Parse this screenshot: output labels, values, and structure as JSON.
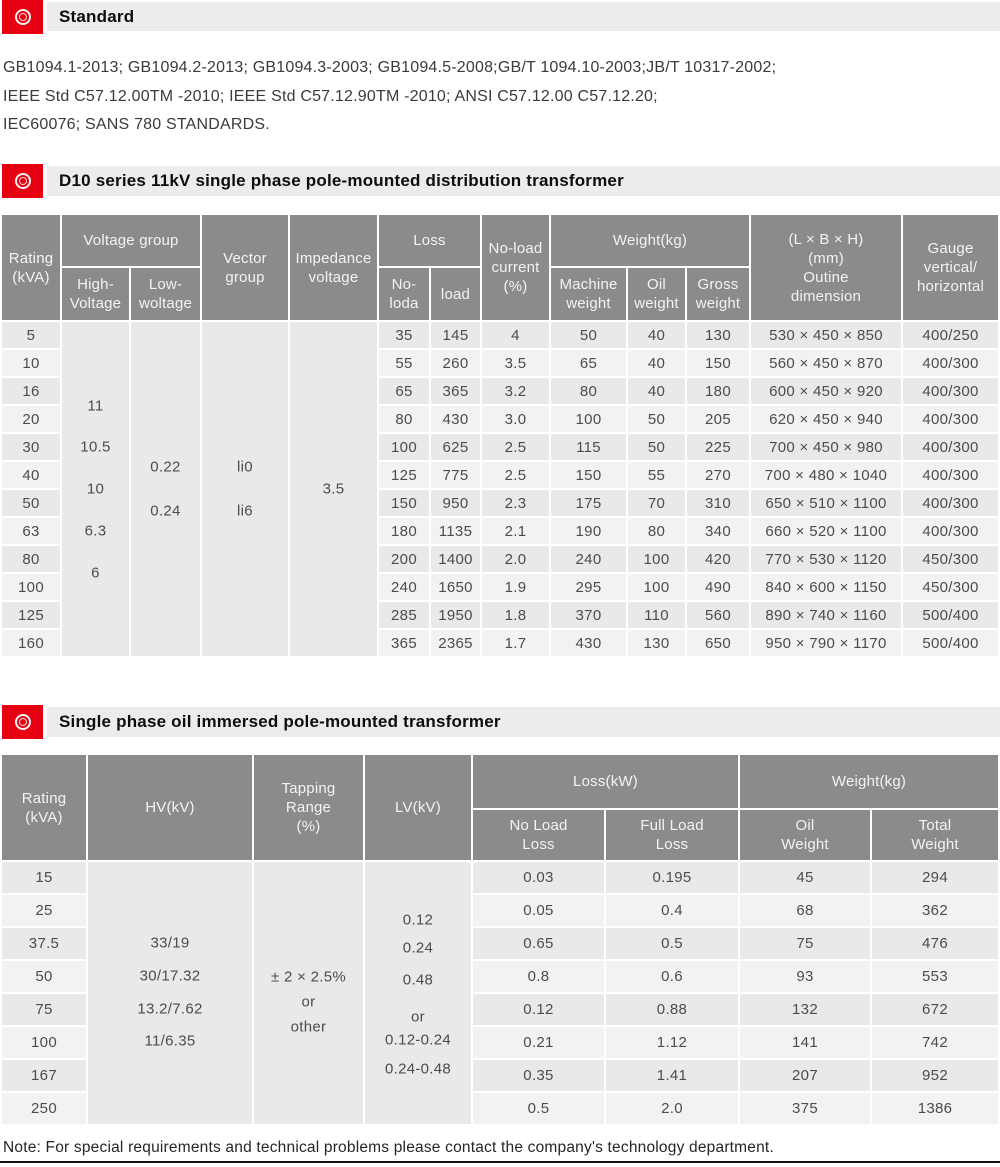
{
  "colors": {
    "accent_red": "#e60012",
    "header_gray": "#8b8b8b",
    "section_bar_gray": "#ececec",
    "row_odd": "#e9e9e9",
    "row_even": "#f2f2f2"
  },
  "sections": {
    "standard": {
      "title": "Standard"
    },
    "d10": {
      "title": "D10 series 11kV single phase pole-mounted distribution transformer"
    },
    "single_phase": {
      "title": "Single phase oil immersed pole-mounted  transformer"
    }
  },
  "standards_text": {
    "line1": "GB1094.1-2013; GB1094.2-2013; GB1094.3-2003; GB1094.5-2008;GB/T 1094.10-2003;JB/T 10317-2002;",
    "line2": "IEEE Std C57.12.00TM -2010; IEEE Std C57.12.90TM -2010; ANSI C57.12.00 C57.12.20;",
    "line3": "IEC60076; SANS 780 STANDARDS."
  },
  "table1": {
    "headers": {
      "rating": "Rating\n(kVA)",
      "voltage_group": "Voltage group",
      "high_voltage": "High-\nVoltage",
      "low_voltage": "Low-\nwoltage",
      "vector_group": "Vector\ngroup",
      "impedance_voltage": "Impedance\nvoltage",
      "loss": "Loss",
      "no_load_loss": "No-\nloda",
      "load_loss": "load",
      "no_load_current": "No-load\ncurrent\n(%)",
      "weight": "Weight(kg)",
      "machine_weight": "Machine\nweight",
      "oil_weight": "Oil\nweight",
      "gross_weight": "Gross\nweight",
      "outline_dimension": "(L × B × H)\n(mm)\nOutine\ndimension",
      "gauge": "Gauge\nvertical/\nhorizontal"
    },
    "merged": {
      "high_voltage": [
        "11",
        "10.5",
        "10",
        "6.3",
        "6"
      ],
      "low_voltage": [
        "0.22",
        "0.24"
      ],
      "vector_group": [
        "li0",
        "li6"
      ],
      "impedance_voltage": [
        "3.5"
      ]
    },
    "rows": [
      [
        "5",
        "35",
        "145",
        "4",
        "50",
        "40",
        "130",
        "530 × 450 × 850",
        "400/250"
      ],
      [
        "10",
        "55",
        "260",
        "3.5",
        "65",
        "40",
        "150",
        "560 × 450 × 870",
        "400/300"
      ],
      [
        "16",
        "65",
        "365",
        "3.2",
        "80",
        "40",
        "180",
        "600 × 450 × 920",
        "400/300"
      ],
      [
        "20",
        "80",
        "430",
        "3.0",
        "100",
        "50",
        "205",
        "620 × 450 × 940",
        "400/300"
      ],
      [
        "30",
        "100",
        "625",
        "2.5",
        "115",
        "50",
        "225",
        "700 × 450 × 980",
        "400/300"
      ],
      [
        "40",
        "125",
        "775",
        "2.5",
        "150",
        "55",
        "270",
        "700 × 480 × 1040",
        "400/300"
      ],
      [
        "50",
        "150",
        "950",
        "2.3",
        "175",
        "70",
        "310",
        "650 × 510 × 1100",
        "400/300"
      ],
      [
        "63",
        "180",
        "1135",
        "2.1",
        "190",
        "80",
        "340",
        "660 × 520 × 1100",
        "400/300"
      ],
      [
        "80",
        "200",
        "1400",
        "2.0",
        "240",
        "100",
        "420",
        "770 × 530 × 1120",
        "450/300"
      ],
      [
        "100",
        "240",
        "1650",
        "1.9",
        "295",
        "100",
        "490",
        "840 × 600 × 1150",
        "450/300"
      ],
      [
        "125",
        "285",
        "1950",
        "1.8",
        "370",
        "110",
        "560",
        "890 × 740 × 1160",
        "500/400"
      ],
      [
        "160",
        "365",
        "2365",
        "1.7",
        "430",
        "130",
        "650",
        "950 × 790 × 1170",
        "500/400"
      ]
    ]
  },
  "table2": {
    "headers": {
      "rating": "Rating\n(kVA)",
      "hv": "HV(kV)",
      "tapping_range": "Tapping\nRange\n(%)",
      "lv": "LV(kV)",
      "loss": "Loss(kW)",
      "no_load_loss": "No Load\nLoss",
      "full_load_loss": "Full Load\nLoss",
      "weight": "Weight(kg)",
      "oil_weight": "Oil\nWeight",
      "total_weight": "Total\nWeight"
    },
    "merged": {
      "hv": [
        "33/19",
        "30/17.32",
        "13.2/7.62",
        "11/6.35"
      ],
      "tapping_range": [
        "± 2 × 2.5%",
        "or",
        "other"
      ],
      "lv": [
        "0.12",
        "0.24",
        "0.48",
        "or",
        "0.12-0.24",
        "0.24-0.48"
      ]
    },
    "rows": [
      [
        "15",
        "0.03",
        "0.195",
        "45",
        "294"
      ],
      [
        "25",
        "0.05",
        "0.4",
        "68",
        "362"
      ],
      [
        "37.5",
        "0.65",
        "0.5",
        "75",
        "476"
      ],
      [
        "50",
        "0.8",
        "0.6",
        "93",
        "553"
      ],
      [
        "75",
        "0.12",
        "0.88",
        "132",
        "672"
      ],
      [
        "100",
        "0.21",
        "1.12",
        "141",
        "742"
      ],
      [
        "167",
        "0.35",
        "1.41",
        "207",
        "952"
      ],
      [
        "250",
        "0.5",
        "2.0",
        "375",
        "1386"
      ]
    ]
  },
  "note": "Note: For special requirements and technical problems please contact the company's technology department."
}
